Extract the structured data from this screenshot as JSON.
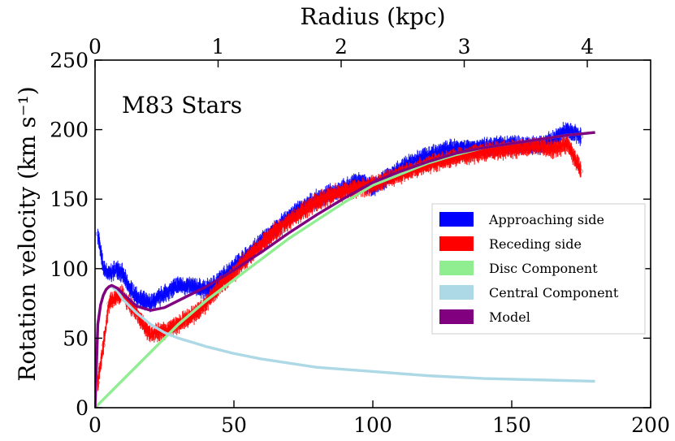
{
  "chart_data": {
    "type": "scatter",
    "title": "",
    "annotation": "M83 Stars",
    "xlabel_bottom": "",
    "xlabel_top": "Radius (kpc)",
    "ylabel": "Rotation velocity (km s⁻¹)",
    "xlim": [
      0,
      200
    ],
    "ylim": [
      0,
      250
    ],
    "xlim_top_kpc": [
      0,
      4.5
    ],
    "x_ticks": [
      0,
      50,
      100,
      150,
      200
    ],
    "x_tick_labels": [
      "0",
      "50",
      "100",
      "150",
      "200"
    ],
    "y_ticks": [
      0,
      50,
      100,
      150,
      200,
      250
    ],
    "y_tick_labels": [
      "0",
      "50",
      "100",
      "150",
      "200",
      "250"
    ],
    "top_ticks_kpc": [
      0,
      1,
      2,
      3,
      4
    ],
    "top_tick_labels": [
      "0",
      "1",
      "2",
      "3",
      "4"
    ],
    "grid": false,
    "legend_position": "center-right",
    "series": [
      {
        "name": "Approaching side",
        "color": "#0000ff",
        "style": "band",
        "x": [
          1,
          3,
          5,
          8,
          10,
          12,
          15,
          18,
          20,
          25,
          30,
          35,
          40,
          45,
          50,
          55,
          60,
          65,
          70,
          75,
          80,
          85,
          90,
          95,
          100,
          110,
          120,
          130,
          140,
          150,
          160,
          165,
          170,
          175
        ],
        "y": [
          125,
          100,
          96,
          100,
          96,
          87,
          80,
          76,
          75,
          82,
          88,
          87,
          85,
          92,
          102,
          110,
          120,
          128,
          138,
          144,
          150,
          154,
          158,
          163,
          158,
          172,
          182,
          187,
          187,
          190,
          188,
          193,
          200,
          195
        ]
      },
      {
        "name": "Receding side",
        "color": "#ff0000",
        "style": "band",
        "x": [
          1,
          3,
          5,
          8,
          10,
          12,
          15,
          18,
          20,
          25,
          30,
          35,
          40,
          45,
          50,
          55,
          60,
          65,
          70,
          75,
          80,
          85,
          90,
          95,
          100,
          110,
          120,
          130,
          140,
          150,
          160,
          165,
          170,
          175
        ],
        "y": [
          18,
          45,
          75,
          80,
          82,
          75,
          68,
          58,
          53,
          55,
          60,
          66,
          75,
          88,
          97,
          108,
          118,
          127,
          135,
          142,
          148,
          153,
          156,
          158,
          160,
          168,
          175,
          180,
          184,
          186,
          188,
          186,
          190,
          170
        ]
      },
      {
        "name": "Disc Component",
        "color": "#90ee90",
        "style": "line",
        "x": [
          0,
          10,
          20,
          25,
          30,
          40,
          50,
          60,
          70,
          80,
          90,
          100,
          110,
          120,
          130,
          140,
          150,
          160,
          170,
          180
        ],
        "y": [
          0,
          20,
          40,
          50,
          60,
          77,
          92,
          107,
          122,
          135,
          148,
          160,
          168,
          176,
          182,
          187,
          190,
          193,
          196,
          198
        ]
      },
      {
        "name": "Central Component",
        "color": "#add8e6",
        "style": "line",
        "x": [
          0,
          1,
          2,
          3,
          4,
          5,
          6,
          8,
          10,
          15,
          20,
          25,
          30,
          40,
          50,
          60,
          80,
          100,
          120,
          140,
          160,
          180
        ],
        "y": [
          0,
          60,
          74,
          81,
          85,
          87,
          87,
          84,
          78,
          68,
          60,
          54,
          50,
          44,
          39,
          35,
          29,
          26,
          23,
          21,
          20,
          19
        ]
      },
      {
        "name": "Model",
        "color": "#800080",
        "style": "line",
        "x": [
          0,
          1,
          2,
          3,
          4,
          5,
          6,
          8,
          10,
          15,
          20,
          25,
          30,
          40,
          50,
          60,
          70,
          80,
          90,
          100,
          110,
          120,
          130,
          140,
          150,
          160,
          170,
          180
        ],
        "y": [
          0,
          60,
          74,
          81,
          85,
          87,
          88,
          86,
          82,
          73,
          70,
          72,
          77,
          87,
          99,
          112,
          126,
          139,
          151,
          162,
          170,
          177,
          183,
          187,
          190,
          193,
          196,
          198
        ]
      }
    ]
  }
}
